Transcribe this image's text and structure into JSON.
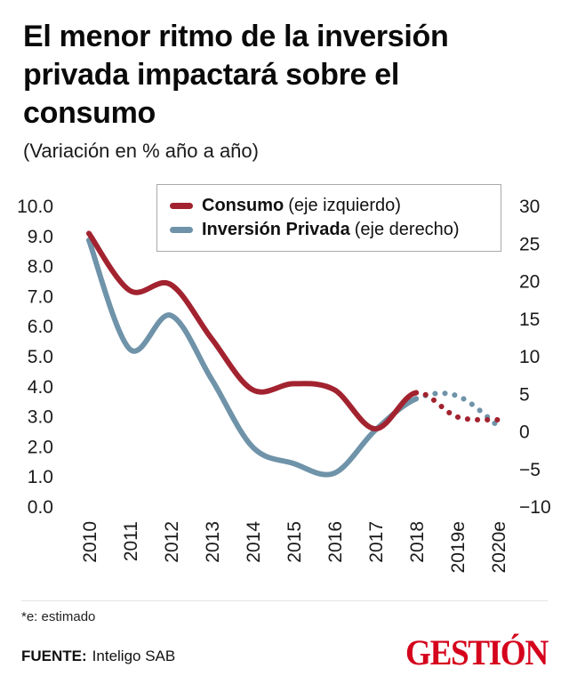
{
  "header": {
    "title_lines": [
      "El menor ritmo de la inversión",
      "privada impactará sobre el",
      "consumo"
    ],
    "subtitle": "(Variación en % año a año)"
  },
  "legend": {
    "items": [
      {
        "name": "Consumo",
        "detail": "(eje izquierdo)",
        "color": "#a2232f"
      },
      {
        "name": "Inversión Privada",
        "detail": "(eje derecho)",
        "color": "#6f93a9"
      }
    ]
  },
  "chart_data": {
    "type": "line",
    "categories": [
      "2010",
      "2011",
      "2012",
      "2013",
      "2014",
      "2015",
      "2016",
      "2017",
      "2018",
      "2019e",
      "2020e"
    ],
    "series": [
      {
        "name": "Consumo",
        "axis": "left",
        "color": "#a2232f",
        "solid_until_index": 8,
        "values": [
          9.1,
          7.2,
          7.4,
          5.6,
          3.9,
          4.1,
          3.9,
          2.6,
          3.8,
          3.0,
          2.9
        ]
      },
      {
        "name": "Inversión Privada",
        "axis": "right",
        "color": "#6f93a9",
        "solid_until_index": 8,
        "values": [
          25.5,
          11.0,
          15.5,
          7.0,
          -2.0,
          -4.2,
          -5.5,
          0.2,
          4.4,
          4.8,
          0.8
        ]
      }
    ],
    "left_axis": {
      "min": 0,
      "max": 10,
      "ticks": [
        "10.0",
        "9.0",
        "8.0",
        "7.0",
        "6.0",
        "5.0",
        "4.0",
        "3.0",
        "2.0",
        "1.0",
        "0.0"
      ]
    },
    "right_axis": {
      "min": -10,
      "max": 30,
      "ticks": [
        "30",
        "25",
        "20",
        "15",
        "10",
        "5",
        "0",
        "−5",
        "−10"
      ]
    },
    "grid": false,
    "legend_position": "top-inside"
  },
  "footnote": "*e: estimado",
  "footer": {
    "source_label": "FUENTE:",
    "source_value": "Inteligo SAB",
    "brand": "GESTIÓN",
    "brand_color": "#d5031c"
  }
}
